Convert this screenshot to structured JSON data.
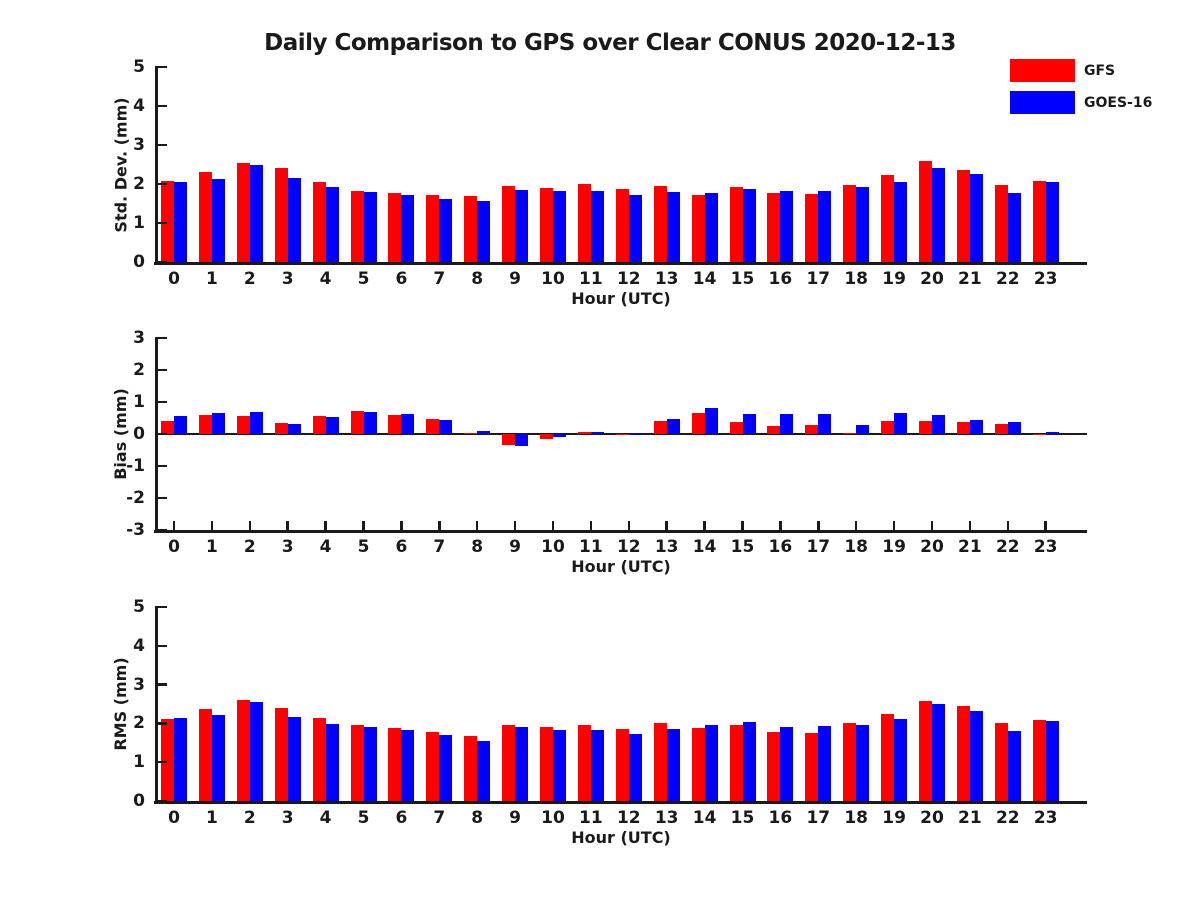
{
  "title": "Daily Comparison to GPS over Clear CONUS 2020-12-13",
  "legend": {
    "items": [
      {
        "label": "GFS",
        "color": "#ff0000"
      },
      {
        "label": "GOES-16",
        "color": "#0000ff"
      }
    ]
  },
  "colors": {
    "gfs": "#ff0000",
    "goes16": "#0000ff",
    "axis": "#1a1a1a",
    "background": "#ffffff"
  },
  "chart_data": [
    {
      "type": "bar",
      "panel": "std-dev",
      "ylabel": "Std. Dev. (mm)",
      "xlabel": "Hour (UTC)",
      "ylim": [
        0,
        5
      ],
      "yticks": [
        0,
        1,
        2,
        3,
        4,
        5
      ],
      "grid": false,
      "legend_position": "top-right",
      "categories": [
        0,
        1,
        2,
        3,
        4,
        5,
        6,
        7,
        8,
        9,
        10,
        11,
        12,
        13,
        14,
        15,
        16,
        17,
        18,
        19,
        20,
        21,
        22,
        23
      ],
      "series": [
        {
          "name": "GFS",
          "color": "#ff0000",
          "values": [
            2.07,
            2.3,
            2.55,
            2.4,
            2.05,
            1.83,
            1.78,
            1.72,
            1.68,
            1.95,
            1.9,
            2.0,
            1.87,
            1.95,
            1.73,
            1.92,
            1.78,
            1.74,
            1.97,
            2.22,
            2.58,
            2.37,
            1.98,
            2.08
          ]
        },
        {
          "name": "GOES-16",
          "color": "#0000ff",
          "values": [
            2.05,
            2.12,
            2.48,
            2.15,
            1.92,
            1.8,
            1.73,
            1.62,
            1.57,
            1.85,
            1.83,
            1.82,
            1.72,
            1.8,
            1.76,
            1.87,
            1.83,
            1.81,
            1.93,
            2.04,
            2.42,
            2.26,
            1.76,
            2.06
          ]
        }
      ]
    },
    {
      "type": "bar",
      "panel": "bias",
      "ylabel": "Bias (mm)",
      "xlabel": "Hour (UTC)",
      "ylim": [
        -3,
        3
      ],
      "yticks": [
        3,
        2,
        1,
        0,
        -1,
        -2,
        -3
      ],
      "grid": false,
      "zero_line": true,
      "categories": [
        0,
        1,
        2,
        3,
        4,
        5,
        6,
        7,
        8,
        9,
        10,
        11,
        12,
        13,
        14,
        15,
        16,
        17,
        18,
        19,
        20,
        21,
        22,
        23
      ],
      "series": [
        {
          "name": "GFS",
          "color": "#ff0000",
          "values": [
            0.42,
            0.58,
            0.55,
            0.33,
            0.55,
            0.73,
            0.6,
            0.48,
            0.03,
            -0.35,
            -0.15,
            0.06,
            -0.03,
            0.42,
            0.66,
            0.36,
            0.26,
            0.27,
            0.02,
            0.42,
            0.4,
            0.36,
            0.3,
            -0.02
          ]
        },
        {
          "name": "GOES-16",
          "color": "#0000ff",
          "values": [
            0.55,
            0.65,
            0.68,
            0.3,
            0.53,
            0.7,
            0.62,
            0.45,
            0.08,
            -0.36,
            -0.1,
            0.06,
            0.01,
            0.46,
            0.82,
            0.63,
            0.61,
            0.62,
            0.27,
            0.65,
            0.6,
            0.44,
            0.39,
            0.05
          ]
        }
      ]
    },
    {
      "type": "bar",
      "panel": "rms",
      "ylabel": "RMS (mm)",
      "xlabel": "Hour (UTC)",
      "ylim": [
        0,
        5
      ],
      "yticks": [
        0,
        1,
        2,
        3,
        4,
        5
      ],
      "grid": false,
      "categories": [
        0,
        1,
        2,
        3,
        4,
        5,
        6,
        7,
        8,
        9,
        10,
        11,
        12,
        13,
        14,
        15,
        16,
        17,
        18,
        19,
        20,
        21,
        22,
        23
      ],
      "series": [
        {
          "name": "GFS",
          "color": "#ff0000",
          "values": [
            2.12,
            2.36,
            2.6,
            2.4,
            2.13,
            1.95,
            1.88,
            1.79,
            1.68,
            1.97,
            1.9,
            1.97,
            1.86,
            2.0,
            1.88,
            1.97,
            1.79,
            1.75,
            2.0,
            2.24,
            2.58,
            2.44,
            2.02,
            2.09
          ]
        },
        {
          "name": "GOES-16",
          "color": "#0000ff",
          "values": [
            2.13,
            2.21,
            2.56,
            2.17,
            1.98,
            1.91,
            1.83,
            1.7,
            1.55,
            1.9,
            1.82,
            1.82,
            1.72,
            1.85,
            1.96,
            2.03,
            1.91,
            1.93,
            1.95,
            2.11,
            2.5,
            2.31,
            1.81,
            2.07
          ]
        }
      ]
    }
  ]
}
